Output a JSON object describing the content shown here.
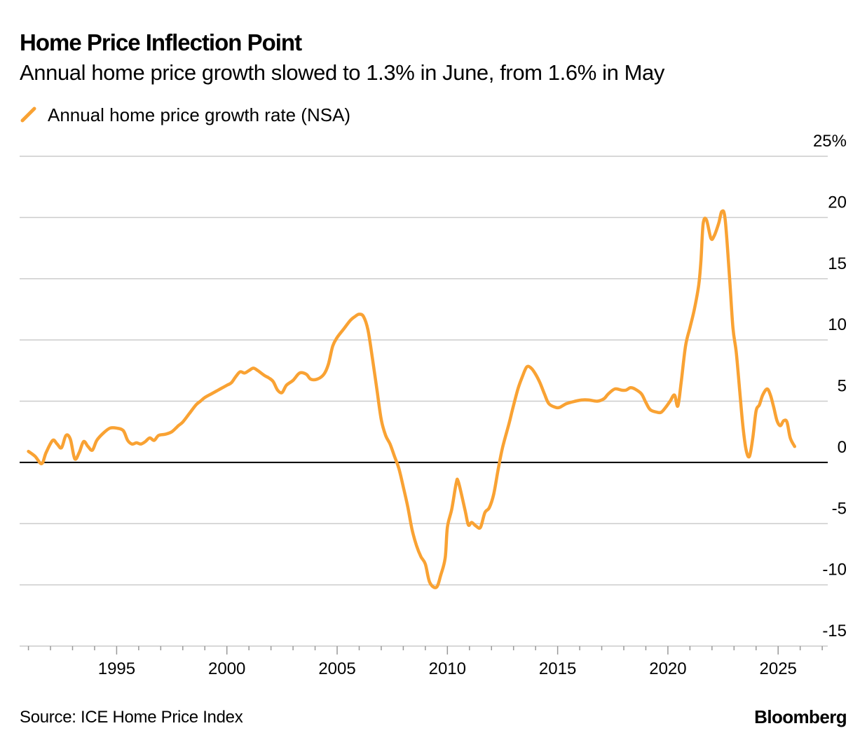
{
  "header": {
    "title": "Home Price Inflection Point",
    "subtitle": "Annual home price growth slowed to 1.3% in June, from 1.6% in May"
  },
  "footer": {
    "source": "Source: ICE Home Price Index",
    "brand": "Bloomberg"
  },
  "colors": {
    "series": "#f9a233",
    "grid": "#cccccc",
    "zero_line": "#000000",
    "text": "#000000",
    "background": "#ffffff"
  },
  "chart_data": {
    "type": "line",
    "title": "Home Price Inflection Point",
    "subtitle": "Annual home price growth slowed to 1.3% in June, from 1.6% in May",
    "xlabel": "",
    "ylabel": "",
    "xlim": [
      1990.6,
      2027.25
    ],
    "ylim": [
      -15,
      25
    ],
    "x_ticks": [
      1995,
      2000,
      2005,
      2010,
      2015,
      2020,
      2025
    ],
    "x_tick_labels": [
      "1995",
      "2000",
      "2005",
      "2010",
      "2015",
      "2020",
      "2025"
    ],
    "y_ticks": [
      25,
      20,
      15,
      10,
      5,
      0,
      -5,
      -10,
      -15
    ],
    "y_tick_labels": [
      "25%",
      "20",
      "15",
      "10",
      "5",
      "0",
      "-5",
      "-10",
      "-15"
    ],
    "y_axis_position": "right",
    "grid": true,
    "legend_position": "top-left",
    "series": [
      {
        "name": "Annual home price growth rate (NSA)",
        "color": "#f9a233",
        "points": [
          [
            1991.0,
            0.9
          ],
          [
            1991.3,
            0.5
          ],
          [
            1991.6,
            -0.1
          ],
          [
            1991.8,
            0.8
          ],
          [
            1992.1,
            1.8
          ],
          [
            1992.3,
            1.5
          ],
          [
            1992.5,
            1.2
          ],
          [
            1992.7,
            2.2
          ],
          [
            1992.9,
            1.9
          ],
          [
            1993.1,
            0.3
          ],
          [
            1993.3,
            0.8
          ],
          [
            1993.5,
            1.7
          ],
          [
            1993.7,
            1.3
          ],
          [
            1993.9,
            1.0
          ],
          [
            1994.1,
            1.8
          ],
          [
            1994.4,
            2.4
          ],
          [
            1994.7,
            2.8
          ],
          [
            1995.0,
            2.8
          ],
          [
            1995.3,
            2.6
          ],
          [
            1995.5,
            1.8
          ],
          [
            1995.7,
            1.5
          ],
          [
            1995.9,
            1.6
          ],
          [
            1996.1,
            1.5
          ],
          [
            1996.3,
            1.7
          ],
          [
            1996.5,
            2.0
          ],
          [
            1996.7,
            1.8
          ],
          [
            1996.9,
            2.2
          ],
          [
            1997.2,
            2.3
          ],
          [
            1997.5,
            2.5
          ],
          [
            1997.8,
            3.0
          ],
          [
            1998.0,
            3.3
          ],
          [
            1998.3,
            4.0
          ],
          [
            1998.6,
            4.7
          ],
          [
            1998.8,
            5.0
          ],
          [
            1999.0,
            5.3
          ],
          [
            1999.3,
            5.6
          ],
          [
            1999.5,
            5.8
          ],
          [
            1999.7,
            6.0
          ],
          [
            2000.0,
            6.3
          ],
          [
            2000.2,
            6.5
          ],
          [
            2000.4,
            7.0
          ],
          [
            2000.6,
            7.4
          ],
          [
            2000.8,
            7.3
          ],
          [
            2001.0,
            7.5
          ],
          [
            2001.2,
            7.7
          ],
          [
            2001.4,
            7.5
          ],
          [
            2001.7,
            7.1
          ],
          [
            2001.9,
            6.9
          ],
          [
            2002.1,
            6.6
          ],
          [
            2002.3,
            5.9
          ],
          [
            2002.5,
            5.7
          ],
          [
            2002.7,
            6.3
          ],
          [
            2003.0,
            6.7
          ],
          [
            2003.3,
            7.3
          ],
          [
            2003.6,
            7.2
          ],
          [
            2003.8,
            6.8
          ],
          [
            2004.1,
            6.8
          ],
          [
            2004.4,
            7.2
          ],
          [
            2004.6,
            8.0
          ],
          [
            2004.8,
            9.5
          ],
          [
            2005.0,
            10.2
          ],
          [
            2005.3,
            10.9
          ],
          [
            2005.6,
            11.6
          ],
          [
            2005.8,
            11.9
          ],
          [
            2006.0,
            12.1
          ],
          [
            2006.2,
            11.9
          ],
          [
            2006.4,
            10.8
          ],
          [
            2006.6,
            8.5
          ],
          [
            2006.8,
            6.0
          ],
          [
            2007.0,
            3.5
          ],
          [
            2007.2,
            2.2
          ],
          [
            2007.4,
            1.5
          ],
          [
            2007.6,
            0.5
          ],
          [
            2007.8,
            -0.5
          ],
          [
            2008.0,
            -2.0
          ],
          [
            2008.2,
            -3.6
          ],
          [
            2008.4,
            -5.5
          ],
          [
            2008.6,
            -6.8
          ],
          [
            2008.8,
            -7.7
          ],
          [
            2009.0,
            -8.3
          ],
          [
            2009.2,
            -9.8
          ],
          [
            2009.5,
            -10.2
          ],
          [
            2009.7,
            -9.2
          ],
          [
            2009.9,
            -7.8
          ],
          [
            2010.0,
            -5.3
          ],
          [
            2010.2,
            -3.8
          ],
          [
            2010.4,
            -1.7
          ],
          [
            2010.5,
            -1.6
          ],
          [
            2010.8,
            -3.9
          ],
          [
            2010.95,
            -5.1
          ],
          [
            2011.1,
            -4.9
          ],
          [
            2011.3,
            -5.2
          ],
          [
            2011.5,
            -5.3
          ],
          [
            2011.7,
            -4.1
          ],
          [
            2011.9,
            -3.7
          ],
          [
            2012.1,
            -2.6
          ],
          [
            2012.3,
            -0.6
          ],
          [
            2012.5,
            1.2
          ],
          [
            2012.8,
            3.2
          ],
          [
            2012.95,
            4.3
          ],
          [
            2013.2,
            6.0
          ],
          [
            2013.4,
            7.0
          ],
          [
            2013.6,
            7.8
          ],
          [
            2013.8,
            7.7
          ],
          [
            2014.0,
            7.2
          ],
          [
            2014.2,
            6.5
          ],
          [
            2014.4,
            5.6
          ],
          [
            2014.6,
            4.8
          ],
          [
            2014.9,
            4.5
          ],
          [
            2015.1,
            4.5
          ],
          [
            2015.4,
            4.8
          ],
          [
            2015.8,
            5.0
          ],
          [
            2016.1,
            5.1
          ],
          [
            2016.4,
            5.1
          ],
          [
            2016.8,
            5.0
          ],
          [
            2017.1,
            5.2
          ],
          [
            2017.3,
            5.6
          ],
          [
            2017.6,
            6.0
          ],
          [
            2017.9,
            5.9
          ],
          [
            2018.1,
            5.9
          ],
          [
            2018.3,
            6.1
          ],
          [
            2018.5,
            6.0
          ],
          [
            2018.8,
            5.6
          ],
          [
            2019.0,
            4.9
          ],
          [
            2019.2,
            4.3
          ],
          [
            2019.5,
            4.1
          ],
          [
            2019.7,
            4.1
          ],
          [
            2019.9,
            4.5
          ],
          [
            2020.1,
            5.0
          ],
          [
            2020.3,
            5.5
          ],
          [
            2020.45,
            4.6
          ],
          [
            2020.6,
            6.5
          ],
          [
            2020.8,
            9.5
          ],
          [
            2021.0,
            11.0
          ],
          [
            2021.2,
            12.5
          ],
          [
            2021.4,
            14.5
          ],
          [
            2021.5,
            16.5
          ],
          [
            2021.6,
            19.5
          ],
          [
            2021.75,
            19.8
          ],
          [
            2021.95,
            18.3
          ],
          [
            2022.1,
            18.5
          ],
          [
            2022.3,
            19.5
          ],
          [
            2022.45,
            20.5
          ],
          [
            2022.6,
            19.8
          ],
          [
            2022.8,
            15.0
          ],
          [
            2022.95,
            11.0
          ],
          [
            2023.1,
            9.0
          ],
          [
            2023.25,
            6.0
          ],
          [
            2023.4,
            3.0
          ],
          [
            2023.55,
            1.0
          ],
          [
            2023.7,
            0.5
          ],
          [
            2023.85,
            2.0
          ],
          [
            2024.0,
            4.2
          ],
          [
            2024.15,
            4.7
          ],
          [
            2024.3,
            5.5
          ],
          [
            2024.5,
            6.0
          ],
          [
            2024.65,
            5.5
          ],
          [
            2024.8,
            4.5
          ],
          [
            2024.95,
            3.4
          ],
          [
            2025.1,
            3.0
          ],
          [
            2025.25,
            3.4
          ],
          [
            2025.4,
            3.3
          ],
          [
            2025.55,
            2.0
          ],
          [
            2025.75,
            1.3
          ]
        ]
      }
    ]
  }
}
